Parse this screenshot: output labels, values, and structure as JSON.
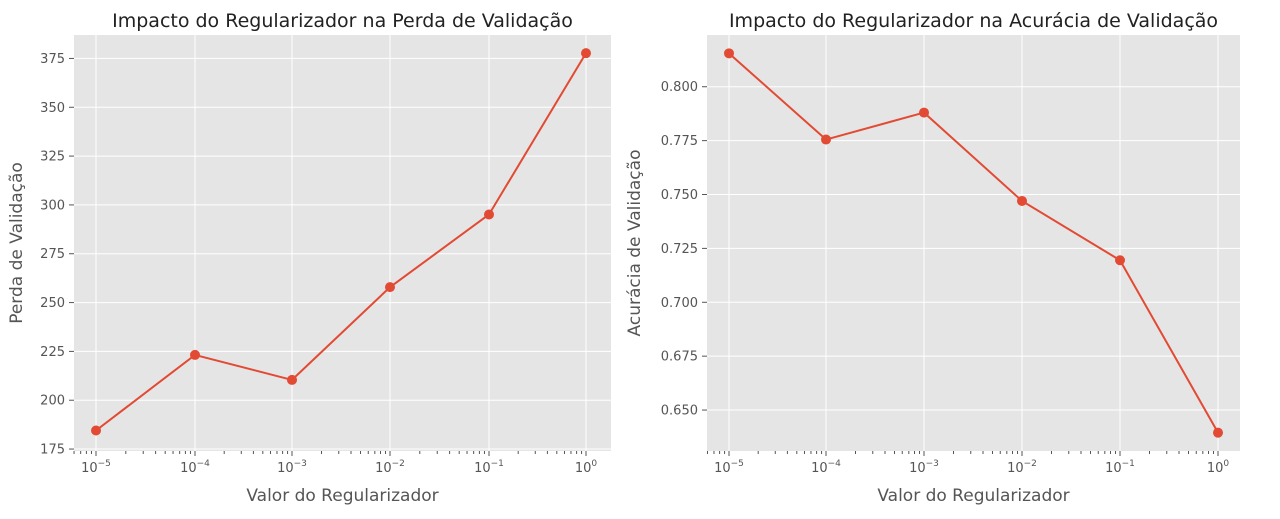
{
  "chart_data": [
    {
      "type": "line",
      "title": "Impacto do Regularizador na Perda de Validação",
      "xlabel": "Valor do Regularizador",
      "ylabel": "Perda de Validação",
      "xscale": "log",
      "x": [
        1e-05,
        0.0001,
        0.001,
        0.01,
        0.1,
        1
      ],
      "xtick_labels": [
        {
          "base": "10",
          "exp": "−5"
        },
        {
          "base": "10",
          "exp": "−4"
        },
        {
          "base": "10",
          "exp": "−3"
        },
        {
          "base": "10",
          "exp": "−2"
        },
        {
          "base": "10",
          "exp": "−1"
        },
        {
          "base": "10",
          "exp": "0"
        }
      ],
      "yticks": [
        175,
        200,
        225,
        250,
        275,
        300,
        325,
        350,
        375
      ],
      "ylim": [
        174,
        387
      ],
      "series": [
        {
          "values": [
            184.5,
            223.2,
            210.4,
            257.9,
            295.1,
            377.7
          ]
        }
      ],
      "grid": true,
      "color": "#E24A33",
      "background": "#E5E5E5"
    },
    {
      "type": "line",
      "title": "Impacto do Regularizador na Acurácia de Validação",
      "xlabel": "Valor do Regularizador",
      "ylabel": "Acurácia de Validação",
      "xscale": "log",
      "x": [
        1e-05,
        0.0001,
        0.001,
        0.01,
        0.1,
        1
      ],
      "xtick_labels": [
        {
          "base": "10",
          "exp": "−5"
        },
        {
          "base": "10",
          "exp": "−4"
        },
        {
          "base": "10",
          "exp": "−3"
        },
        {
          "base": "10",
          "exp": "−2"
        },
        {
          "base": "10",
          "exp": "−1"
        },
        {
          "base": "10",
          "exp": "0"
        }
      ],
      "yticks": [
        0.65,
        0.675,
        0.7,
        0.725,
        0.75,
        0.775,
        0.8
      ],
      "ytick_labels": [
        "0.650",
        "0.675",
        "0.700",
        "0.725",
        "0.750",
        "0.775",
        "0.800"
      ],
      "ylim": [
        0.631,
        0.824
      ],
      "series": [
        {
          "values": [
            0.8155,
            0.7755,
            0.788,
            0.747,
            0.7195,
            0.6395
          ]
        }
      ],
      "grid": true,
      "color": "#E24A33",
      "background": "#E5E5E5"
    }
  ]
}
